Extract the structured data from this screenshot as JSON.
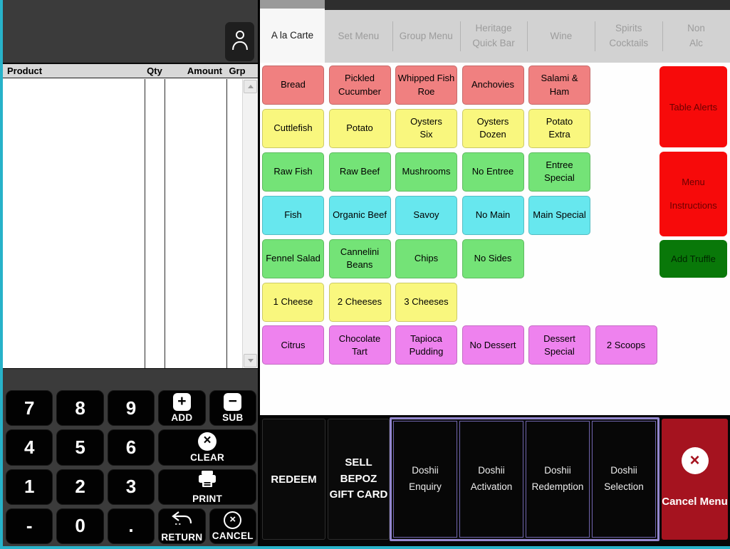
{
  "colors": {
    "teal_edge": "#27B2C9",
    "salmon": "#F08080",
    "yellow": "#F9F77E",
    "green": "#74E377",
    "cyan": "#67E7EE",
    "magenta": "#EE82EE",
    "alert_red": "#F70A0A",
    "alert_text": "#6B0000",
    "truffle_green": "#097809",
    "truffle_text": "#002600",
    "cancel_red": "#A5131F",
    "doshii_border": "#9488CF"
  },
  "tabs": [
    {
      "label": "A la Carte",
      "active": true
    },
    {
      "label": "Set Menu",
      "active": false
    },
    {
      "label": "Group Menu",
      "active": false
    },
    {
      "label": "Heritage\nQuick Bar",
      "active": false
    },
    {
      "label": "Wine",
      "active": false
    },
    {
      "label": "Spirits\nCocktails",
      "active": false
    },
    {
      "label": "Non\nAlc",
      "active": false
    }
  ],
  "order_table": {
    "columns": [
      "Product",
      "Qty",
      "Amount",
      "Grp"
    ]
  },
  "menu_grid": {
    "rows": [
      {
        "color": "salmon",
        "items": [
          "Bread",
          "Pickled\nCucumber",
          "Whipped Fish\nRoe",
          "Anchovies",
          "Salami &\nHam"
        ]
      },
      {
        "color": "yellow",
        "items": [
          "Cuttlefish",
          "Potato",
          "Oysters\nSix",
          "Oysters\nDozen",
          "Potato\nExtra"
        ]
      },
      {
        "color": "green",
        "items": [
          "Raw Fish",
          "Raw Beef",
          "Mushrooms",
          "No Entree",
          "Entree\nSpecial"
        ]
      },
      {
        "color": "cyan",
        "items": [
          "Fish",
          "Organic Beef",
          "Savoy",
          "No Main",
          "Main Special"
        ]
      },
      {
        "color": "green",
        "items": [
          "Fennel Salad",
          "Cannelini\nBeans",
          "Chips",
          "No Sides"
        ]
      },
      {
        "color": "yellow",
        "items": [
          "1 Cheese",
          "2 Cheeses",
          "3 Cheeses"
        ]
      },
      {
        "color": "magenta",
        "items": [
          "Citrus",
          "Chocolate\nTart",
          "Tapioca\nPudding",
          "No Dessert",
          "Dessert\nSpecial",
          "2 Scoops"
        ]
      }
    ]
  },
  "side_buttons": [
    {
      "id": "table-alerts",
      "label": "Table Alerts",
      "color": "alert_red",
      "text_color": "alert_text"
    },
    {
      "id": "menu-instructions",
      "label": "Menu\nInstructions",
      "color": "alert_red",
      "text_color": "alert_text"
    },
    {
      "id": "add-truffle",
      "label": "Add Truffle",
      "color": "truffle_green",
      "text_color": "truffle_text"
    }
  ],
  "bottom_bar": {
    "redeem_label": "REDEEM",
    "gift_card_label": "SELL BEPOZ\nGIFT CARD",
    "doshii_buttons": [
      "Doshii\nEnquiry",
      "Doshii\nActivation",
      "Doshii\nRedemption",
      "Doshii\nSelection"
    ],
    "cancel_label": "Cancel Menu"
  },
  "keypad": {
    "keys": [
      {
        "label": "7"
      },
      {
        "label": "8"
      },
      {
        "label": "9"
      },
      {
        "label": "ADD",
        "icon": "plus-icon"
      },
      {
        "label": "SUB",
        "icon": "minus-icon"
      },
      {
        "label": "4"
      },
      {
        "label": "5"
      },
      {
        "label": "6"
      },
      {
        "label": "CLEAR",
        "icon": "x-circle-icon",
        "span": 2
      },
      {
        "label": "1"
      },
      {
        "label": "2"
      },
      {
        "label": "3"
      },
      {
        "label": "PRINT",
        "icon": "printer-icon",
        "span": 2
      },
      {
        "label": "-"
      },
      {
        "label": "0"
      },
      {
        "label": "."
      },
      {
        "label": "RETURN",
        "icon": "return-arrow-icon"
      },
      {
        "label": "CANCEL",
        "icon": "x-circle-outline-icon"
      }
    ]
  }
}
